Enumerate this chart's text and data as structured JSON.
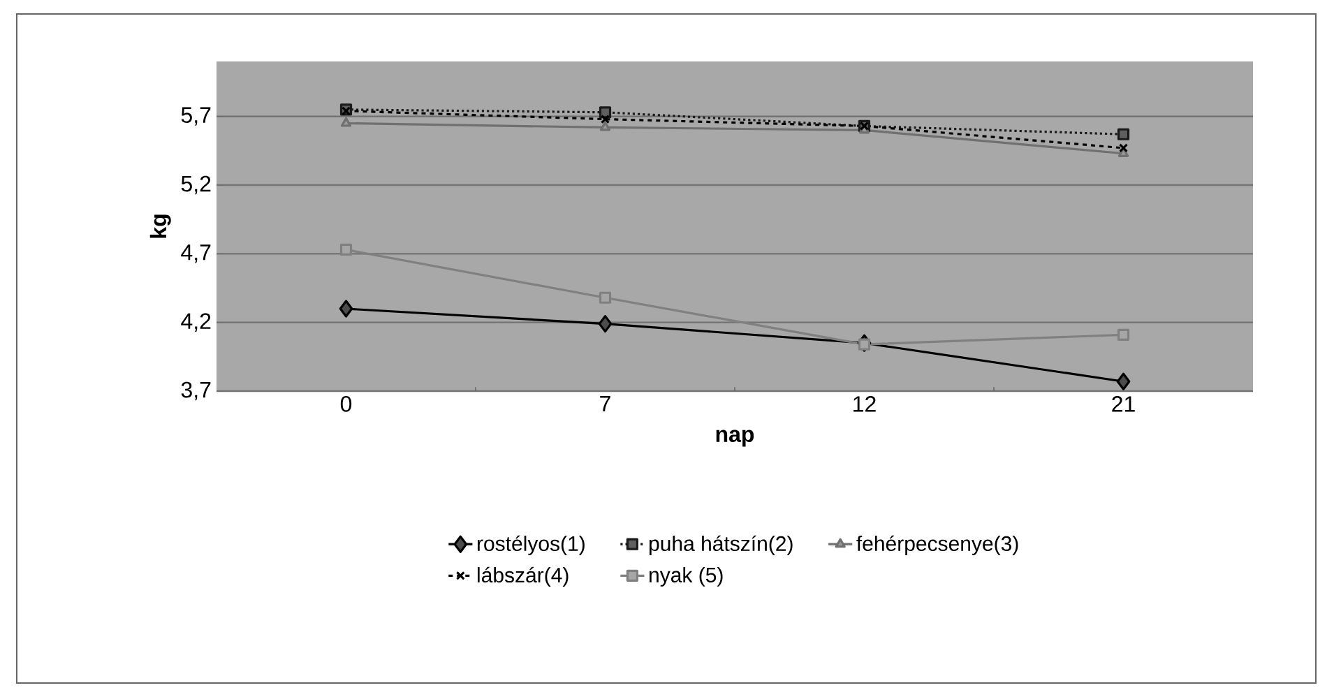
{
  "chart_data": {
    "type": "line",
    "xlabel": "nap",
    "ylabel": "kg",
    "categories": [
      "0",
      "7",
      "12",
      "21"
    ],
    "series": [
      {
        "name": "rostélyos(1)",
        "color": "#000000",
        "marker": "diamond",
        "line_style": "solid",
        "values": [
          4.3,
          4.19,
          4.05,
          3.77
        ]
      },
      {
        "name": "puha hátszín(2)",
        "color": "#1a1a1a",
        "marker": "square",
        "line_style": "dotted",
        "values": [
          5.75,
          5.73,
          5.63,
          5.57
        ]
      },
      {
        "name": "fehérpecsenye(3)",
        "color": "#707070",
        "marker": "triangle",
        "line_style": "solid",
        "values": [
          5.65,
          5.62,
          5.6,
          5.43
        ]
      },
      {
        "name": "lábszár(4)",
        "color": "#000000",
        "marker": "cross",
        "line_style": "dashed",
        "values": [
          5.74,
          5.68,
          5.63,
          5.47
        ]
      },
      {
        "name": "nyak (5)",
        "color": "#808080",
        "marker": "square",
        "line_style": "solid",
        "values": [
          4.73,
          4.38,
          4.04,
          4.11
        ]
      }
    ],
    "ylim": [
      3.7,
      6.1
    ],
    "yticks": [
      {
        "value": 3.7,
        "label": "3,7"
      },
      {
        "value": 4.2,
        "label": "4,2"
      },
      {
        "value": 4.7,
        "label": "4,7"
      },
      {
        "value": 5.2,
        "label": "5,2"
      },
      {
        "value": 5.7,
        "label": "5,7"
      }
    ],
    "grid": "y",
    "legend": "bottom"
  }
}
